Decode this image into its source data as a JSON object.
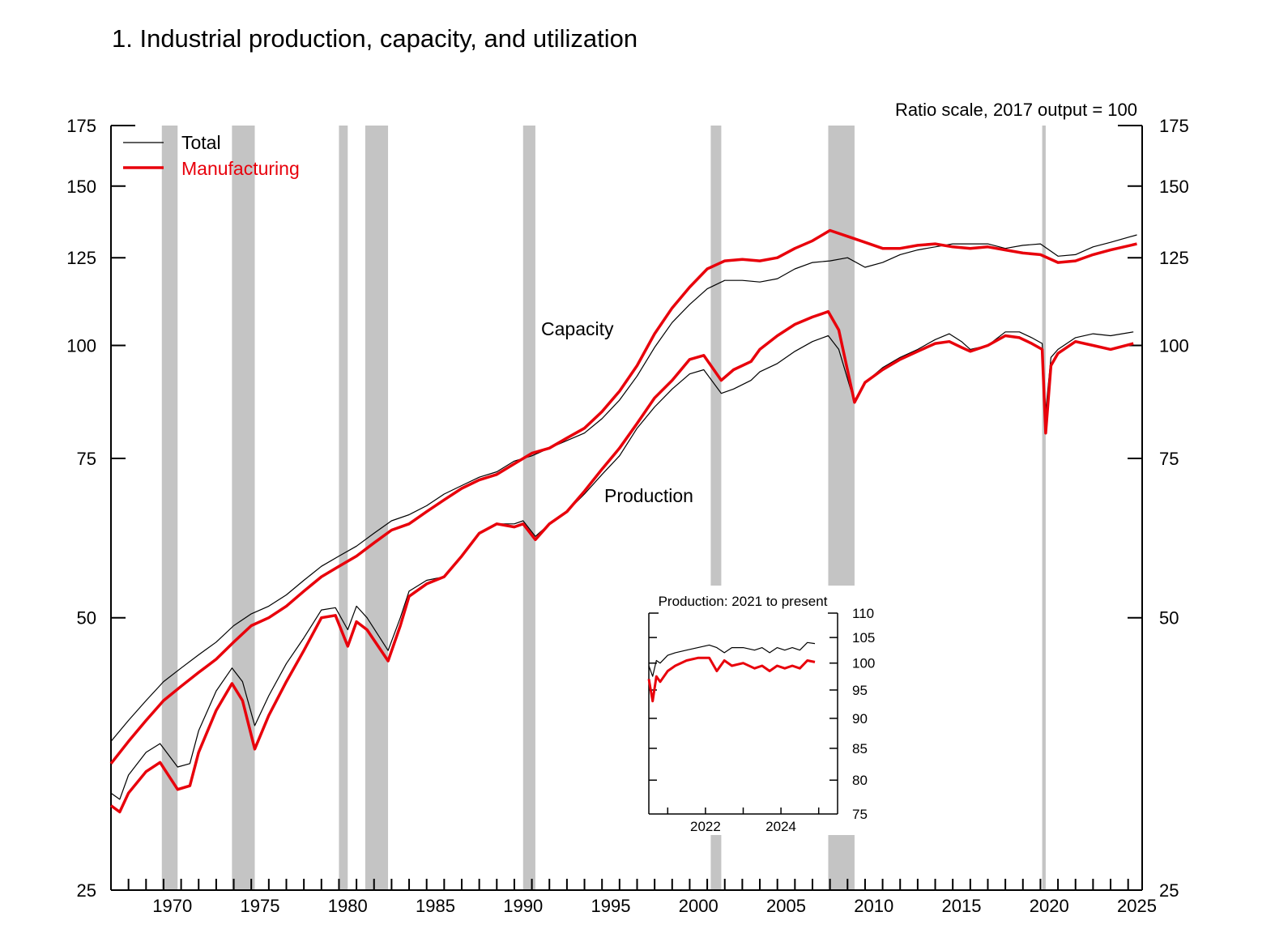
{
  "chart_data": {
    "type": "line",
    "title": "1.  Industrial production, capacity, and utilization",
    "scale_note": "Ratio scale, 2017 output = 100",
    "y_scale": "log",
    "ylim": [
      25,
      175
    ],
    "xlim": [
      1967,
      2025.8
    ],
    "y_ticks": [
      25,
      50,
      75,
      100,
      125,
      150,
      175
    ],
    "y_tick_labels": [
      "25",
      "50",
      "75",
      "100",
      "125",
      "150",
      "175"
    ],
    "x_tick_labels": [
      "1970",
      "1975",
      "1980",
      "1985",
      "1990",
      "1995",
      "2000",
      "2005",
      "2010",
      "2015",
      "2020",
      "2025"
    ],
    "legend": {
      "placement": "top-left",
      "entries": [
        {
          "label": "Total",
          "color": "#000000"
        },
        {
          "label": "Manufacturing",
          "color": "#e8000b"
        }
      ]
    },
    "annotations": [
      {
        "text": "Capacity",
        "x": 1994,
        "y": 104
      },
      {
        "text": "Production",
        "x": 1998,
        "y": 68
      }
    ],
    "recessions": [
      [
        1969.9,
        1970.8
      ],
      [
        1973.9,
        1975.2
      ],
      [
        1980.0,
        1980.5
      ],
      [
        1981.5,
        1982.8
      ],
      [
        1990.5,
        1991.2
      ],
      [
        2001.2,
        2001.8
      ],
      [
        2007.9,
        2009.4
      ],
      [
        2020.1,
        2020.3
      ]
    ],
    "series": [
      {
        "name": "Total",
        "role": "capacity",
        "color": "#000000",
        "x": [
          1967,
          1968,
          1969,
          1970,
          1971,
          1972,
          1973,
          1974,
          1975,
          1976,
          1977,
          1978,
          1979,
          1980,
          1981,
          1982,
          1983,
          1984,
          1985,
          1986,
          1987,
          1988,
          1989,
          1990,
          1991,
          1992,
          1993,
          1994,
          1995,
          1996,
          1997,
          1998,
          1999,
          2000,
          2001,
          2002,
          2003,
          2004,
          2005,
          2006,
          2007,
          2008,
          2009,
          2010,
          2011,
          2012,
          2013,
          2014,
          2015,
          2016,
          2017,
          2018,
          2019,
          2020,
          2021,
          2022,
          2023,
          2024,
          2025.5
        ],
        "y": [
          36.5,
          38.5,
          40.5,
          42.5,
          44,
          45.5,
          47,
          49,
          50.5,
          51.5,
          53,
          55,
          57,
          58.5,
          60,
          62,
          64,
          65,
          66.5,
          68.5,
          70,
          71.5,
          72.5,
          74.5,
          75.5,
          77,
          78.5,
          80,
          83,
          87,
          92.5,
          99.5,
          106,
          111,
          115.5,
          118,
          118,
          117.5,
          118.5,
          121.5,
          123.5,
          124,
          125,
          122,
          123.5,
          126,
          127.5,
          128.5,
          129.5,
          129.5,
          129.5,
          128,
          129,
          129.5,
          125.5,
          126,
          128.5,
          130,
          132.5
        ]
      },
      {
        "name": "Manufacturing",
        "role": "capacity",
        "color": "#e8000b",
        "x": [
          1967,
          1968,
          1969,
          1970,
          1971,
          1972,
          1973,
          1974,
          1975,
          1976,
          1977,
          1978,
          1979,
          1980,
          1981,
          1982,
          1983,
          1984,
          1985,
          1986,
          1987,
          1988,
          1989,
          1990,
          1991,
          1992,
          1993,
          1994,
          1995,
          1996,
          1997,
          1998,
          1999,
          2000,
          2001,
          2002,
          2003,
          2004,
          2005,
          2006,
          2007,
          2008,
          2009,
          2010,
          2011,
          2012,
          2013,
          2014,
          2015,
          2016,
          2017,
          2018,
          2019,
          2020,
          2021,
          2022,
          2023,
          2024,
          2025.5
        ],
        "y": [
          34.5,
          36.5,
          38.5,
          40.5,
          42,
          43.5,
          45,
          47,
          49,
          50,
          51.5,
          53.5,
          55.5,
          57,
          58.5,
          60.5,
          62.5,
          63.5,
          65.5,
          67.5,
          69.5,
          71,
          72,
          74,
          76,
          77,
          79,
          81,
          84.5,
          89,
          95,
          103,
          110,
          116,
          121.5,
          124,
          124.5,
          124,
          125,
          128,
          130.5,
          134,
          132,
          130,
          128,
          128,
          129,
          129.5,
          128.5,
          128,
          128.5,
          127.5,
          126.5,
          126,
          123.5,
          124,
          126,
          127.5,
          129.5
        ]
      },
      {
        "name": "Total",
        "role": "production",
        "color": "#000000",
        "x": [
          1967,
          1967.5,
          1968,
          1969,
          1969.8,
          1970.8,
          1971.5,
          1972,
          1973,
          1973.9,
          1974.5,
          1975.2,
          1976,
          1977,
          1978,
          1979,
          1979.8,
          1980.5,
          1981,
          1981.6,
          1982.8,
          1983.5,
          1984,
          1985,
          1986,
          1987,
          1988,
          1989,
          1990,
          1990.5,
          1991.2,
          1992,
          1993,
          1994,
          1995,
          1996,
          1997,
          1998,
          1999,
          2000,
          2000.8,
          2001.8,
          2002.5,
          2003.5,
          2004,
          2005,
          2006,
          2007,
          2007.9,
          2008.5,
          2009.4,
          2010,
          2011,
          2012,
          2013,
          2014,
          2014.8,
          2015.5,
          2016,
          2017,
          2018,
          2018.8,
          2019.5,
          2020.1,
          2020.3,
          2020.6,
          2021,
          2022,
          2023,
          2024,
          2025.3
        ],
        "y": [
          32,
          31.5,
          33.5,
          35.5,
          36.3,
          34.2,
          34.5,
          37.5,
          41.5,
          44,
          42.5,
          38,
          41,
          44.5,
          47.5,
          51,
          51.3,
          48.5,
          51.5,
          50,
          46,
          50,
          53.5,
          55,
          55.5,
          58.5,
          62,
          63.5,
          63.5,
          64,
          61.5,
          63.5,
          65.5,
          68.5,
          72,
          75.5,
          81,
          85.5,
          89.5,
          93,
          94,
          88.5,
          89.5,
          91.5,
          93.5,
          95.5,
          98.5,
          101,
          102.5,
          99,
          86.5,
          91,
          94.5,
          97,
          99,
          101.5,
          103,
          101,
          99,
          100,
          103.5,
          103.5,
          102,
          100.5,
          84.5,
          97,
          99,
          102,
          103,
          102.5,
          103.5
        ]
      },
      {
        "name": "Manufacturing",
        "role": "production",
        "color": "#e8000b",
        "x": [
          1967,
          1967.5,
          1968,
          1969,
          1969.8,
          1970.8,
          1971.5,
          1972,
          1973,
          1973.9,
          1974.5,
          1975.2,
          1976,
          1977,
          1978,
          1979,
          1979.8,
          1980.5,
          1981,
          1981.6,
          1982.8,
          1983.5,
          1984,
          1985,
          1986,
          1987,
          1988,
          1989,
          1990,
          1990.5,
          1991.2,
          1992,
          1993,
          1994,
          1995,
          1996,
          1997,
          1998,
          1999,
          2000,
          2000.8,
          2001.8,
          2002.5,
          2003.5,
          2004,
          2005,
          2006,
          2007,
          2007.9,
          2008.5,
          2009.4,
          2010,
          2011,
          2012,
          2013,
          2014,
          2014.8,
          2015.5,
          2016,
          2017,
          2018,
          2018.8,
          2019.5,
          2020.1,
          2020.3,
          2020.6,
          2021,
          2022,
          2023,
          2024,
          2025.3
        ],
        "y": [
          31,
          30.5,
          32,
          33.8,
          34.6,
          32.3,
          32.6,
          35.5,
          39.5,
          42.3,
          40.5,
          35.8,
          39,
          42.5,
          46,
          50,
          50.3,
          46.5,
          49.5,
          48.5,
          44.8,
          49,
          52.8,
          54.5,
          55.5,
          58.5,
          62,
          63.5,
          63,
          63.5,
          61,
          63.5,
          65.5,
          69,
          73,
          77,
          82,
          87.5,
          91.5,
          96.5,
          97.5,
          91.5,
          94,
          96,
          99,
          102.5,
          105.5,
          107.5,
          109,
          104,
          86.5,
          91,
          94,
          96.5,
          98.5,
          100.5,
          101,
          99.5,
          98.5,
          100,
          102.5,
          102,
          100.5,
          99,
          80,
          95,
          98,
          101,
          100,
          99,
          100.5
        ]
      }
    ]
  },
  "inset": {
    "title": "Production: 2021 to present",
    "y_tick_labels": [
      "75",
      "80",
      "85",
      "90",
      "95",
      "100",
      "105",
      "110"
    ],
    "y_ticks": [
      75,
      80,
      85,
      90,
      95,
      100,
      105,
      110
    ],
    "ylim": [
      75,
      110
    ],
    "xlim": [
      2021,
      2026
    ],
    "x_tick_labels": [
      "2022",
      "2024"
    ],
    "x_tick_values": [
      2022.5,
      2024.5
    ],
    "series": [
      {
        "name": "Total",
        "color": "#000000",
        "x": [
          2021,
          2021.1,
          2021.2,
          2021.3,
          2021.5,
          2021.7,
          2022,
          2022.3,
          2022.6,
          2022.8,
          2023,
          2023.2,
          2023.5,
          2023.8,
          2024,
          2024.2,
          2024.4,
          2024.6,
          2024.8,
          2025,
          2025.2,
          2025.4
        ],
        "y": [
          99.5,
          97.5,
          100.5,
          100,
          101.5,
          102,
          102.5,
          103,
          103.5,
          103,
          102,
          103,
          103,
          102.5,
          103,
          102,
          103,
          102.5,
          103,
          102.5,
          104,
          103.8
        ]
      },
      {
        "name": "Manufacturing",
        "color": "#e8000b",
        "x": [
          2021,
          2021.1,
          2021.2,
          2021.3,
          2021.5,
          2021.7,
          2022,
          2022.3,
          2022.6,
          2022.8,
          2023,
          2023.2,
          2023.5,
          2023.8,
          2024,
          2024.2,
          2024.4,
          2024.6,
          2024.8,
          2025,
          2025.2,
          2025.4
        ],
        "y": [
          97,
          93,
          97.5,
          96.5,
          98.5,
          99.5,
          100.5,
          101,
          101,
          98.5,
          100.5,
          99.5,
          100,
          99,
          99.5,
          98.5,
          99.5,
          99,
          99.5,
          99,
          100.5,
          100.2
        ]
      }
    ]
  }
}
